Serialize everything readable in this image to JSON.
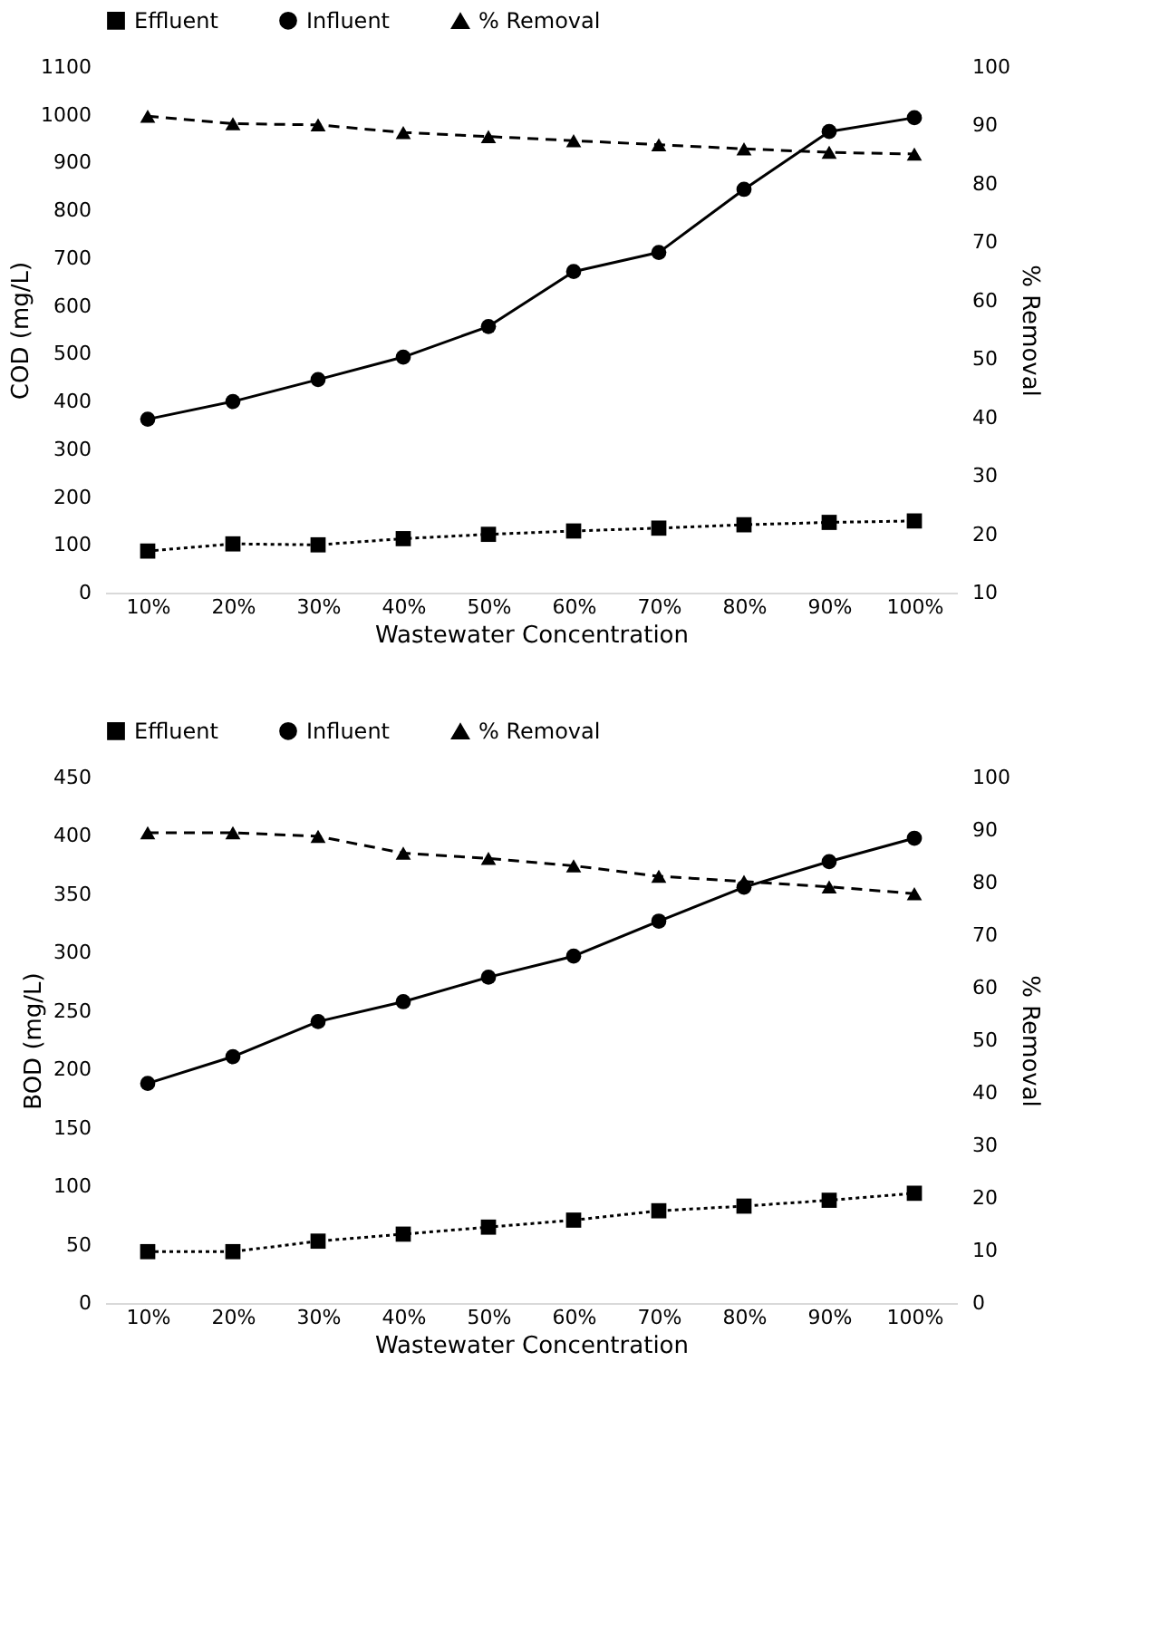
{
  "chart_data": [
    {
      "type": "line",
      "xlabel": "Wastewater Concentration",
      "ylabel": "COD (mg/L)",
      "y2label": "% Removal",
      "categories": [
        "10%",
        "20%",
        "30%",
        "40%",
        "50%",
        "60%",
        "70%",
        "80%",
        "90%",
        "100%"
      ],
      "ylim": [
        0,
        1100
      ],
      "yticks": [
        0,
        100,
        200,
        300,
        400,
        500,
        600,
        700,
        800,
        900,
        1000,
        1100
      ],
      "y2lim": [
        10,
        100
      ],
      "y2ticks": [
        10,
        20,
        30,
        40,
        50,
        60,
        70,
        80,
        90,
        100
      ],
      "grid": false,
      "legend": "top",
      "series": [
        {
          "name": "Effluent",
          "color": "#000000",
          "marker": "square",
          "line_style": "dotted",
          "values": [
            87,
            102,
            100,
            113,
            122,
            129,
            135,
            142,
            147,
            150
          ]
        },
        {
          "name": "Influent",
          "color": "#000000",
          "marker": "circle",
          "line_style": "solid",
          "values": [
            363,
            400,
            446,
            493,
            557,
            672,
            712,
            844,
            965,
            994
          ]
        },
        {
          "name": "% Removal",
          "color": "#000000",
          "marker": "triangle",
          "line_style": "dashed",
          "axis": "y2",
          "values": [
            91.6,
            90.3,
            90.1,
            88.8,
            88.1,
            87.4,
            86.7,
            86.0,
            85.4,
            85.1
          ]
        }
      ]
    },
    {
      "type": "line",
      "xlabel": "Wastewater Concentration",
      "ylabel": "BOD (mg/L)",
      "y2label": "% Removal",
      "categories": [
        "10%",
        "20%",
        "30%",
        "40%",
        "50%",
        "60%",
        "70%",
        "80%",
        "90%",
        "100%"
      ],
      "ylim": [
        0,
        450
      ],
      "yticks": [
        0,
        50,
        100,
        150,
        200,
        250,
        300,
        350,
        400,
        450
      ],
      "y2lim": [
        0,
        100
      ],
      "y2ticks": [
        0,
        10,
        20,
        30,
        40,
        50,
        60,
        70,
        80,
        90,
        100
      ],
      "grid": false,
      "legend": "top",
      "series": [
        {
          "name": "Effluent",
          "color": "#000000",
          "marker": "square",
          "line_style": "dotted",
          "values": [
            44,
            44,
            53,
            59,
            65,
            71,
            79,
            83,
            88,
            94
          ]
        },
        {
          "name": "Influent",
          "color": "#000000",
          "marker": "circle",
          "line_style": "solid",
          "values": [
            188,
            211,
            241,
            258,
            279,
            297,
            327,
            356,
            378,
            398
          ]
        },
        {
          "name": "% Removal",
          "color": "#000000",
          "marker": "triangle",
          "line_style": "dashed",
          "axis": "y2",
          "values": [
            89.5,
            89.5,
            88.8,
            85.6,
            84.6,
            83.2,
            81.2,
            80.2,
            79.2,
            77.9
          ]
        }
      ]
    }
  ]
}
